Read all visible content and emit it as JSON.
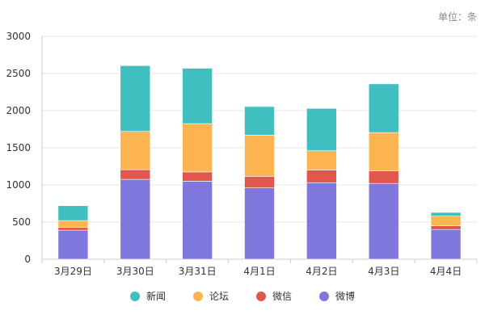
{
  "unit_label": "单位：条",
  "chart_data": {
    "type": "bar",
    "stacked": true,
    "categories": [
      "3月29日",
      "3月30日",
      "3月31日",
      "4月1日",
      "4月2日",
      "4月3日",
      "4月4日"
    ],
    "series": [
      {
        "name": "微博",
        "color": "#7F77DB",
        "values": [
          390,
          1075,
          1050,
          960,
          1030,
          1020,
          400
        ]
      },
      {
        "name": "微信",
        "color": "#E0584B",
        "values": [
          40,
          130,
          125,
          155,
          170,
          170,
          50
        ]
      },
      {
        "name": "论坛",
        "color": "#FBB450",
        "values": [
          90,
          515,
          650,
          555,
          260,
          515,
          130
        ]
      },
      {
        "name": "新闻",
        "color": "#3FBFBF",
        "values": [
          200,
          885,
          745,
          385,
          570,
          655,
          50
        ]
      }
    ],
    "legend_order": [
      "新闻",
      "论坛",
      "微信",
      "微博"
    ],
    "yticks": [
      "0",
      "500",
      "1000",
      "1500",
      "2000",
      "2500",
      "3000"
    ],
    "ylim": [
      0,
      3000
    ],
    "grid": true,
    "legend_position": "bottom"
  }
}
